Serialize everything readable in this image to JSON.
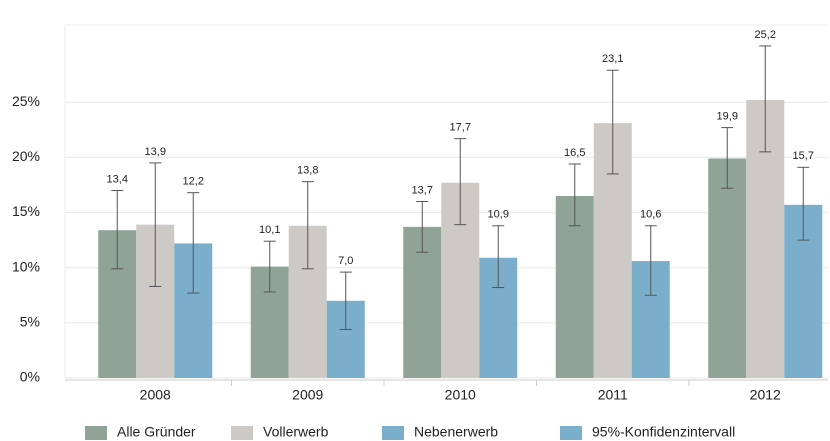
{
  "chart_data": {
    "type": "bar",
    "categories": [
      "2008",
      "2009",
      "2010",
      "2011",
      "2012"
    ],
    "series": [
      {
        "name": "Alle Gründer",
        "color": "#8fa497",
        "values": [
          13.4,
          10.1,
          13.7,
          16.5,
          19.9
        ],
        "value_labels": [
          "13,4",
          "10,1",
          "13,7",
          "16,5",
          "19,9"
        ],
        "error_low": [
          9.9,
          7.8,
          11.4,
          13.8,
          17.2
        ],
        "error_high": [
          17.0,
          12.4,
          16.0,
          19.4,
          22.7
        ]
      },
      {
        "name": "Vollerwerb",
        "color": "#cdc9c4",
        "values": [
          13.9,
          13.8,
          17.7,
          23.1,
          25.2
        ],
        "value_labels": [
          "13,9",
          "13,8",
          "17,7",
          "23,1",
          "25,2"
        ],
        "error_low": [
          8.3,
          9.9,
          13.9,
          18.5,
          20.5
        ],
        "error_high": [
          19.5,
          17.8,
          21.7,
          27.9,
          30.1
        ]
      },
      {
        "name": "Nebenerwerb",
        "color": "#7aaecb",
        "values": [
          12.2,
          7.0,
          10.9,
          10.6,
          15.7
        ],
        "value_labels": [
          "12,2",
          "7,0",
          "10,9",
          "10,6",
          "15,7"
        ],
        "error_low": [
          7.7,
          4.4,
          8.2,
          7.5,
          12.5
        ],
        "error_high": [
          16.8,
          9.6,
          13.8,
          13.8,
          19.1
        ]
      }
    ],
    "ci_legend": {
      "name": "95%-Konfidenzintervall",
      "color": "#7aaecb"
    },
    "ylim": [
      0,
      32
    ],
    "yticks": [
      {
        "value": 0,
        "label": "0%"
      },
      {
        "value": 5,
        "label": "5%"
      },
      {
        "value": 10,
        "label": "10%"
      },
      {
        "value": 15,
        "label": "15%"
      },
      {
        "value": 20,
        "label": "20%"
      },
      {
        "value": 25,
        "label": "25%"
      }
    ],
    "grid": true
  }
}
